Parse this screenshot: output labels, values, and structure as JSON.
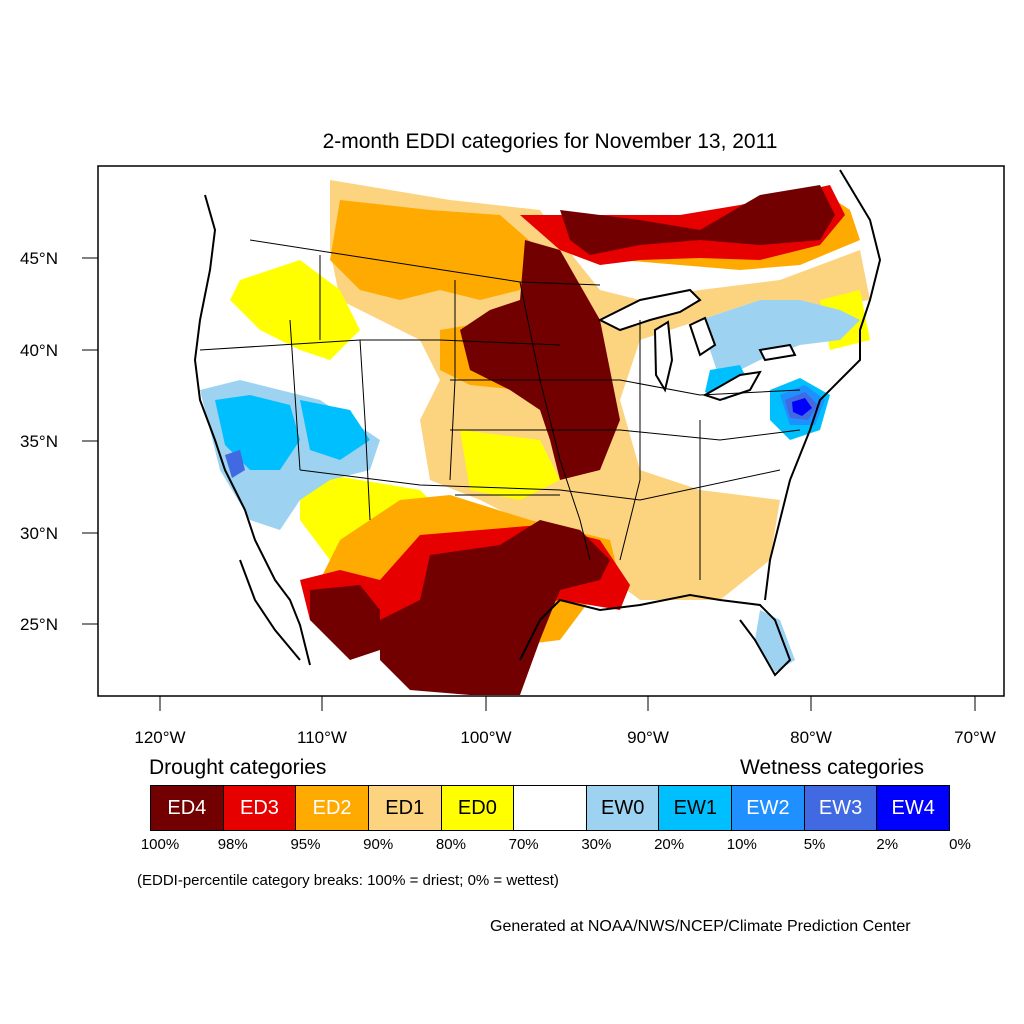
{
  "title": "2-month EDDI categories for November 13, 2011",
  "lat_labels": [
    "45°N",
    "40°N",
    "35°N",
    "30°N",
    "25°N"
  ],
  "lon_labels": [
    "120°W",
    "110°W",
    "100°W",
    "90°W",
    "80°W",
    "70°W"
  ],
  "legend": {
    "drought_heading": "Drought categories",
    "wetness_heading": "Wetness categories",
    "categories": [
      {
        "label": "ED4",
        "color": "#730000",
        "text_color": "#ffffff"
      },
      {
        "label": "ED3",
        "color": "#e60000",
        "text_color": "#ffffff"
      },
      {
        "label": "ED2",
        "color": "#ffaa00",
        "text_color": "#ffffff"
      },
      {
        "label": "ED1",
        "color": "#fcd37f",
        "text_color": "#000000"
      },
      {
        "label": "ED0",
        "color": "#ffff00",
        "text_color": "#000000"
      },
      {
        "label": "",
        "color": "#ffffff",
        "text_color": "#000000"
      },
      {
        "label": "EW0",
        "color": "#9dd3f0",
        "text_color": "#000000"
      },
      {
        "label": "EW1",
        "color": "#00bfff",
        "text_color": "#000000"
      },
      {
        "label": "EW2",
        "color": "#1e90ff",
        "text_color": "#ffffff"
      },
      {
        "label": "EW3",
        "color": "#4169e1",
        "text_color": "#ffffff"
      },
      {
        "label": "EW4",
        "color": "#0000ff",
        "text_color": "#ffffff"
      }
    ],
    "ticks": [
      "100%",
      "98%",
      "95%",
      "90%",
      "80%",
      "70%",
      "30%",
      "20%",
      "10%",
      "5%",
      "2%",
      "0%"
    ]
  },
  "note": "(EDDI-percentile category breaks: 100% = driest; 0% = wettest)",
  "credit": "Generated at NOAA/NWS/NCEP/Climate Prediction Center"
}
